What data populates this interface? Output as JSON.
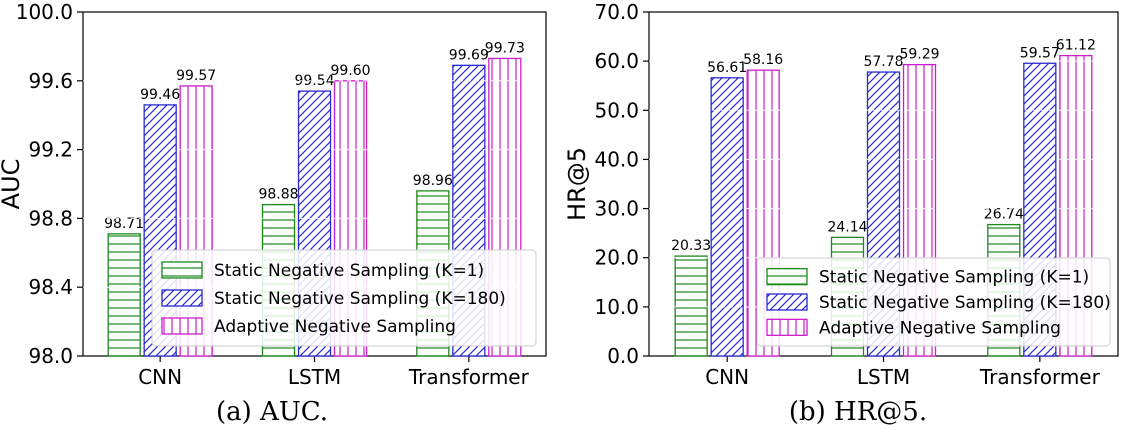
{
  "chart_data": [
    {
      "type": "bar",
      "caption": "(a)  AUC.",
      "ylabel": "AUC",
      "xlabel": "",
      "categories": [
        "CNN",
        "LSTM",
        "Transformer"
      ],
      "ylim": [
        98.0,
        100.0
      ],
      "yticks": [
        "98.0",
        "98.4",
        "98.8",
        "99.2",
        "99.6",
        "100.0"
      ],
      "grid": "horizontal dashed, white",
      "legend_placement": "lower-right",
      "series": [
        {
          "name": "Static Negative Sampling (K=1)",
          "values": [
            98.71,
            98.88,
            98.96
          ],
          "labels": [
            "98.71",
            "98.88",
            "98.96"
          ],
          "color": "#1a8a1a",
          "hatch": "horizontal"
        },
        {
          "name": "Static Negative Sampling (K=180)",
          "values": [
            99.46,
            99.54,
            99.69
          ],
          "labels": [
            "99.46",
            "99.54",
            "99.69"
          ],
          "color": "#2a2ad0",
          "hatch": "diagonal"
        },
        {
          "name": "Adaptive Negative Sampling",
          "values": [
            99.57,
            99.6,
            99.73
          ],
          "labels": [
            "99.57",
            "99.60",
            "99.73"
          ],
          "color": "#cc1ecc",
          "hatch": "vertical"
        }
      ]
    },
    {
      "type": "bar",
      "caption": "(b)  HR@5.",
      "ylabel": "HR@5",
      "xlabel": "",
      "categories": [
        "CNN",
        "LSTM",
        "Transformer"
      ],
      "ylim": [
        0.0,
        70.0
      ],
      "yticks": [
        "0.0",
        "10.0",
        "20.0",
        "30.0",
        "40.0",
        "50.0",
        "60.0",
        "70.0"
      ],
      "grid": "horizontal dashed, white",
      "legend_placement": "lower-right",
      "series": [
        {
          "name": "Static Negative Sampling (K=1)",
          "values": [
            20.33,
            24.14,
            26.74
          ],
          "labels": [
            "20.33",
            "24.14",
            "26.74"
          ],
          "color": "#1a8a1a",
          "hatch": "horizontal"
        },
        {
          "name": "Static Negative Sampling (K=180)",
          "values": [
            56.61,
            57.78,
            59.57
          ],
          "labels": [
            "56.61",
            "57.78",
            "59.57"
          ],
          "color": "#2a2ad0",
          "hatch": "diagonal"
        },
        {
          "name": "Adaptive Negative Sampling",
          "values": [
            58.16,
            59.29,
            61.12
          ],
          "labels": [
            "58.16",
            "59.29",
            "61.12"
          ],
          "color": "#cc1ecc",
          "hatch": "vertical"
        }
      ]
    }
  ]
}
